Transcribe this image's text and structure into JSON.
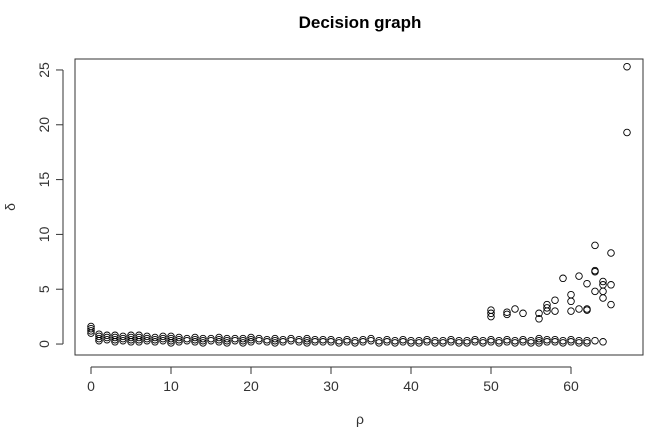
{
  "chart_data": {
    "type": "scatter",
    "title": "Decision graph",
    "xlabel": "ρ",
    "ylabel": "δ",
    "xlim": [
      -2,
      69
    ],
    "ylim": [
      -1,
      26
    ],
    "xticks": [
      0,
      10,
      20,
      30,
      40,
      50,
      60
    ],
    "yticks": [
      0,
      5,
      10,
      15,
      20,
      25
    ],
    "xtick_labels": [
      "0",
      "10",
      "20",
      "30",
      "40",
      "50",
      "60"
    ],
    "ytick_labels": [
      "0",
      "5",
      "10",
      "15",
      "20",
      "25"
    ],
    "grid": false,
    "legend": "none",
    "series": [
      {
        "points": [
          [
            0,
            1.6
          ],
          [
            0,
            1.4
          ],
          [
            0,
            1.2
          ],
          [
            0,
            1.0
          ],
          [
            1,
            0.9
          ],
          [
            1,
            0.7
          ],
          [
            1,
            0.5
          ],
          [
            1,
            0.3
          ],
          [
            2,
            0.8
          ],
          [
            2,
            0.6
          ],
          [
            2,
            0.4
          ],
          [
            3,
            0.8
          ],
          [
            3,
            0.6
          ],
          [
            3,
            0.4
          ],
          [
            3,
            0.2
          ],
          [
            4,
            0.7
          ],
          [
            4,
            0.5
          ],
          [
            4,
            0.3
          ],
          [
            5,
            0.8
          ],
          [
            5,
            0.6
          ],
          [
            5,
            0.4
          ],
          [
            5,
            0.2
          ],
          [
            6,
            0.8
          ],
          [
            6,
            0.6
          ],
          [
            6,
            0.4
          ],
          [
            6,
            0.2
          ],
          [
            7,
            0.7
          ],
          [
            7,
            0.5
          ],
          [
            7,
            0.3
          ],
          [
            8,
            0.6
          ],
          [
            8,
            0.4
          ],
          [
            8,
            0.2
          ],
          [
            9,
            0.7
          ],
          [
            9,
            0.5
          ],
          [
            9,
            0.3
          ],
          [
            10,
            0.7
          ],
          [
            10,
            0.5
          ],
          [
            10,
            0.3
          ],
          [
            10,
            0.1
          ],
          [
            11,
            0.6
          ],
          [
            11,
            0.4
          ],
          [
            11,
            0.2
          ],
          [
            12,
            0.5
          ],
          [
            12,
            0.3
          ],
          [
            13,
            0.6
          ],
          [
            13,
            0.4
          ],
          [
            13,
            0.2
          ],
          [
            14,
            0.5
          ],
          [
            14,
            0.3
          ],
          [
            14,
            0.1
          ],
          [
            15,
            0.5
          ],
          [
            15,
            0.3
          ],
          [
            16,
            0.6
          ],
          [
            16,
            0.4
          ],
          [
            16,
            0.2
          ],
          [
            17,
            0.5
          ],
          [
            17,
            0.3
          ],
          [
            17,
            0.1
          ],
          [
            18,
            0.5
          ],
          [
            18,
            0.3
          ],
          [
            19,
            0.5
          ],
          [
            19,
            0.3
          ],
          [
            19,
            0.1
          ],
          [
            20,
            0.6
          ],
          [
            20,
            0.4
          ],
          [
            20,
            0.2
          ],
          [
            21,
            0.5
          ],
          [
            21,
            0.3
          ],
          [
            22,
            0.4
          ],
          [
            22,
            0.2
          ],
          [
            23,
            0.5
          ],
          [
            23,
            0.3
          ],
          [
            23,
            0.1
          ],
          [
            24,
            0.4
          ],
          [
            24,
            0.2
          ],
          [
            25,
            0.5
          ],
          [
            25,
            0.3
          ],
          [
            26,
            0.4
          ],
          [
            26,
            0.2
          ],
          [
            27,
            0.5
          ],
          [
            27,
            0.3
          ],
          [
            27,
            0.1
          ],
          [
            28,
            0.4
          ],
          [
            28,
            0.2
          ],
          [
            29,
            0.4
          ],
          [
            29,
            0.2
          ],
          [
            30,
            0.4
          ],
          [
            30,
            0.2
          ],
          [
            31,
            0.3
          ],
          [
            31,
            0.1
          ],
          [
            32,
            0.4
          ],
          [
            32,
            0.2
          ],
          [
            33,
            0.3
          ],
          [
            33,
            0.1
          ],
          [
            34,
            0.4
          ],
          [
            34,
            0.2
          ],
          [
            35,
            0.5
          ],
          [
            35,
            0.3
          ],
          [
            36,
            0.3
          ],
          [
            36,
            0.1
          ],
          [
            37,
            0.4
          ],
          [
            37,
            0.2
          ],
          [
            38,
            0.3
          ],
          [
            38,
            0.1
          ],
          [
            39,
            0.4
          ],
          [
            39,
            0.2
          ],
          [
            40,
            0.3
          ],
          [
            40,
            0.1
          ],
          [
            41,
            0.3
          ],
          [
            41,
            0.1
          ],
          [
            42,
            0.4
          ],
          [
            42,
            0.2
          ],
          [
            43,
            0.3
          ],
          [
            43,
            0.1
          ],
          [
            44,
            0.3
          ],
          [
            44,
            0.1
          ],
          [
            45,
            0.4
          ],
          [
            45,
            0.2
          ],
          [
            46,
            0.3
          ],
          [
            46,
            0.1
          ],
          [
            47,
            0.3
          ],
          [
            47,
            0.1
          ],
          [
            48,
            0.4
          ],
          [
            48,
            0.2
          ],
          [
            49,
            0.3
          ],
          [
            49,
            0.1
          ],
          [
            50,
            0.4
          ],
          [
            50,
            0.2
          ],
          [
            51,
            0.3
          ],
          [
            51,
            0.1
          ],
          [
            52,
            0.4
          ],
          [
            52,
            0.2
          ],
          [
            53,
            0.3
          ],
          [
            53,
            0.1
          ],
          [
            54,
            0.4
          ],
          [
            54,
            0.2
          ],
          [
            55,
            0.3
          ],
          [
            55,
            0.1
          ],
          [
            56,
            0.5
          ],
          [
            56,
            0.3
          ],
          [
            56,
            0.1
          ],
          [
            57,
            0.4
          ],
          [
            57,
            0.2
          ],
          [
            58,
            0.4
          ],
          [
            58,
            0.2
          ],
          [
            59,
            0.3
          ],
          [
            59,
            0.1
          ],
          [
            60,
            0.4
          ],
          [
            60,
            0.2
          ],
          [
            61,
            0.3
          ],
          [
            61,
            0.1
          ],
          [
            62,
            0.3
          ],
          [
            62,
            0.1
          ],
          [
            63,
            0.3
          ],
          [
            64,
            0.2
          ],
          [
            50,
            3.1
          ],
          [
            50,
            2.8
          ],
          [
            50,
            2.5
          ],
          [
            52,
            2.9
          ],
          [
            52,
            2.7
          ],
          [
            53,
            3.2
          ],
          [
            54,
            2.8
          ],
          [
            56,
            2.3
          ],
          [
            56,
            2.8
          ],
          [
            57,
            3.3
          ],
          [
            57,
            3.0
          ],
          [
            57,
            3.6
          ],
          [
            58,
            3.0
          ],
          [
            58,
            4.0
          ],
          [
            59,
            6.0
          ],
          [
            60,
            4.5
          ],
          [
            60,
            3.9
          ],
          [
            60,
            3.0
          ],
          [
            61,
            3.2
          ],
          [
            61,
            6.2
          ],
          [
            62,
            5.5
          ],
          [
            62,
            3.2
          ],
          [
            62,
            3.1
          ],
          [
            63,
            9.0
          ],
          [
            63,
            6.7
          ],
          [
            63,
            6.6
          ],
          [
            63,
            4.8
          ],
          [
            64,
            5.7
          ],
          [
            64,
            5.4
          ],
          [
            64,
            4.8
          ],
          [
            64,
            4.2
          ],
          [
            65,
            8.3
          ],
          [
            65,
            5.4
          ],
          [
            65,
            3.6
          ],
          [
            67,
            25.3
          ],
          [
            67,
            19.3
          ]
        ]
      }
    ]
  }
}
